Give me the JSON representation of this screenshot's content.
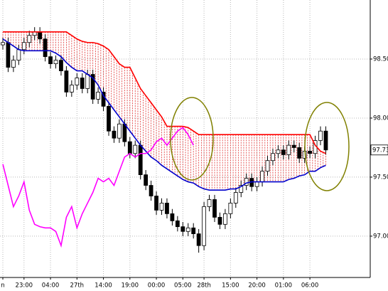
{
  "chart_data": {
    "type": "candlestick",
    "categories": [
      "n",
      null,
      null,
      null,
      "23:00",
      null,
      null,
      null,
      null,
      "04:00",
      null,
      null,
      null,
      null,
      "27th",
      null,
      null,
      null,
      null,
      "14:00",
      null,
      null,
      null,
      null,
      "19:00",
      null,
      null,
      null,
      null,
      "00:00",
      null,
      null,
      null,
      null,
      "05:00",
      null,
      null,
      null,
      "28th",
      null,
      null,
      null,
      null,
      "15:00",
      null,
      null,
      null,
      null,
      "20:00",
      null,
      null,
      null,
      null,
      "01:00",
      null,
      null,
      null,
      null,
      "06:00",
      null,
      null,
      null
    ],
    "open": [
      98.62,
      98.64,
      98.43,
      98.49,
      98.58,
      98.64,
      98.7,
      98.73,
      98.67,
      98.52,
      98.46,
      98.49,
      98.4,
      98.22,
      98.28,
      98.34,
      98.25,
      98.37,
      98.16,
      98.22,
      98.1,
      97.89,
      97.83,
      97.95,
      97.8,
      97.7,
      97.77,
      97.52,
      97.43,
      97.34,
      97.22,
      97.28,
      97.19,
      97.13,
      97.08,
      97.04,
      97.07,
      97.02,
      96.92,
      97.25,
      97.31,
      97.16,
      97.1,
      97.19,
      97.28,
      97.37,
      97.43,
      97.49,
      97.42,
      97.46,
      97.55,
      97.64,
      97.7,
      97.73,
      97.69,
      97.77,
      97.75,
      97.66,
      97.72,
      97.7,
      97.81,
      97.89
    ],
    "high": [
      98.68,
      98.68,
      98.53,
      98.62,
      98.68,
      98.74,
      98.77,
      98.77,
      98.71,
      98.56,
      98.53,
      98.53,
      98.44,
      98.32,
      98.38,
      98.38,
      98.41,
      98.41,
      98.26,
      98.26,
      98.14,
      97.93,
      97.99,
      97.99,
      97.84,
      97.81,
      97.81,
      97.56,
      97.47,
      97.38,
      97.32,
      97.32,
      97.23,
      97.17,
      97.12,
      97.11,
      97.11,
      97.06,
      97.29,
      97.35,
      97.35,
      97.2,
      97.23,
      97.32,
      97.41,
      97.47,
      97.53,
      97.53,
      97.5,
      97.59,
      97.68,
      97.74,
      97.77,
      97.77,
      97.81,
      97.81,
      97.79,
      97.76,
      97.76,
      97.85,
      97.93,
      97.93
    ],
    "low": [
      98.58,
      98.39,
      98.39,
      98.45,
      98.54,
      98.6,
      98.66,
      98.63,
      98.48,
      98.42,
      98.42,
      98.36,
      98.18,
      98.18,
      98.24,
      98.21,
      98.21,
      98.12,
      98.12,
      98.06,
      97.85,
      97.79,
      97.79,
      97.76,
      97.66,
      97.66,
      97.48,
      97.39,
      97.3,
      97.18,
      97.18,
      97.15,
      97.09,
      97.04,
      97.0,
      97.0,
      96.98,
      96.86,
      96.88,
      97.21,
      97.12,
      97.06,
      97.06,
      97.15,
      97.24,
      97.33,
      97.39,
      97.38,
      97.38,
      97.42,
      97.51,
      97.6,
      97.66,
      97.65,
      97.65,
      97.71,
      97.62,
      97.62,
      97.66,
      97.66,
      97.77,
      97.69
    ],
    "close": [
      98.64,
      98.43,
      98.49,
      98.58,
      98.64,
      98.7,
      98.73,
      98.67,
      98.52,
      98.46,
      98.49,
      98.4,
      98.22,
      98.28,
      98.34,
      98.25,
      98.37,
      98.16,
      98.22,
      98.1,
      97.89,
      97.83,
      97.95,
      97.8,
      97.7,
      97.77,
      97.52,
      97.43,
      97.34,
      97.22,
      97.28,
      97.19,
      97.13,
      97.08,
      97.04,
      97.07,
      97.02,
      96.92,
      97.25,
      97.31,
      97.16,
      97.1,
      97.19,
      97.28,
      97.37,
      97.43,
      97.49,
      97.42,
      97.46,
      97.55,
      97.64,
      97.7,
      97.73,
      97.69,
      97.77,
      97.75,
      97.66,
      97.72,
      97.7,
      97.81,
      97.89,
      97.73
    ],
    "up_color": "#ffffff",
    "down_color": "#000000",
    "lines": [
      {
        "color": "#ff0000",
        "values": [
          98.73,
          98.73,
          98.73,
          98.73,
          98.73,
          98.73,
          98.73,
          98.73,
          98.73,
          98.73,
          98.73,
          98.73,
          98.73,
          98.7,
          98.67,
          98.65,
          98.64,
          98.64,
          98.63,
          98.61,
          98.58,
          98.52,
          98.46,
          98.43,
          98.43,
          98.34,
          98.25,
          98.19,
          98.13,
          98.07,
          98.01,
          97.93,
          97.93,
          97.93,
          97.93,
          97.92,
          97.89,
          97.86,
          97.86,
          97.86,
          97.86,
          97.86,
          97.86,
          97.86,
          97.86,
          97.86,
          97.86,
          97.86,
          97.86,
          97.86,
          97.86,
          97.86,
          97.86,
          97.86,
          97.86,
          97.86,
          97.86,
          97.86,
          97.86,
          97.77,
          97.72,
          97.7
        ]
      },
      {
        "color": "#0000cc",
        "values": [
          98.67,
          98.64,
          98.61,
          98.58,
          98.57,
          98.57,
          98.57,
          98.57,
          98.57,
          98.57,
          98.55,
          98.52,
          98.47,
          98.43,
          98.4,
          98.4,
          98.37,
          98.34,
          98.28,
          98.19,
          98.13,
          98.07,
          98.01,
          97.95,
          97.89,
          97.83,
          97.77,
          97.72,
          97.67,
          97.64,
          97.6,
          97.57,
          97.54,
          97.51,
          97.48,
          97.46,
          97.45,
          97.42,
          97.4,
          97.39,
          97.39,
          97.39,
          97.39,
          97.4,
          97.4,
          97.42,
          97.45,
          97.46,
          97.46,
          97.46,
          97.46,
          97.46,
          97.46,
          97.46,
          97.48,
          97.49,
          97.51,
          97.52,
          97.55,
          97.55,
          97.58,
          97.6
        ]
      },
      {
        "color": "#ff00ff",
        "values": [
          97.61,
          97.43,
          97.25,
          97.34,
          97.46,
          97.22,
          97.1,
          97.08,
          97.07,
          97.07,
          97.04,
          96.92,
          97.16,
          97.25,
          97.07,
          97.19,
          97.28,
          97.37,
          97.49,
          97.46,
          97.49,
          97.43,
          97.55,
          97.67,
          97.7,
          97.67,
          97.7,
          97.7,
          97.73,
          97.8,
          97.83,
          97.77,
          97.83,
          97.89,
          97.92,
          97.86,
          97.77,
          null,
          null,
          null,
          null,
          null,
          null,
          null,
          null,
          null,
          null,
          null,
          null,
          null,
          null,
          null,
          null,
          null,
          null,
          null,
          null,
          null,
          null,
          null,
          null,
          null
        ]
      }
    ],
    "ylim": [
      96.65,
      99.0
    ],
    "yticks": [
      {
        "value": 97.0,
        "label": "97.00"
      },
      {
        "value": 97.5,
        "label": "97.50"
      },
      {
        "value": 98.0,
        "label": "98.00"
      },
      {
        "value": 98.5,
        "label": "98.50"
      }
    ],
    "price_marker": 97.73,
    "grid": true
  }
}
